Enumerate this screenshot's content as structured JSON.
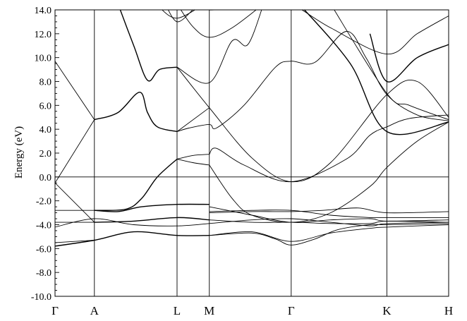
{
  "chart_data": {
    "type": "line",
    "title": "",
    "ylabel": "Energy (eV)",
    "xlabel": "",
    "ylim": [
      -10.0,
      14.0
    ],
    "y_ticks": [
      "14.0",
      "12.0",
      "10.0",
      "8.0",
      "6.0",
      "4.0",
      "2.0",
      "0.0",
      "-2.0",
      "-4.0",
      "-6.0",
      "-8.0",
      "-10.0"
    ],
    "y_tick_values": [
      14,
      12,
      10,
      8,
      6,
      4,
      2,
      0,
      -2,
      -4,
      -6,
      -8,
      -10
    ],
    "kpoints": [
      {
        "label": "Γ",
        "pos": 0.0
      },
      {
        "label": "A",
        "pos": 0.1
      },
      {
        "label": "L",
        "pos": 0.31
      },
      {
        "label": "M",
        "pos": 0.392
      },
      {
        "label": "Γ",
        "pos": 0.6
      },
      {
        "label": "K",
        "pos": 0.843
      },
      {
        "label": "H",
        "pos": 1.0
      }
    ],
    "fermi_level": 0.0,
    "grid": false,
    "series": [
      {
        "bold": false,
        "points": [
          [
            0,
            9.7
          ],
          [
            0.1,
            4.8
          ]
        ]
      },
      {
        "bold": false,
        "points": [
          [
            0,
            -0.5
          ],
          [
            0.1,
            4.8
          ]
        ]
      },
      {
        "bold": false,
        "points": [
          [
            0,
            -0.5
          ],
          [
            0.1,
            -3.8
          ]
        ]
      },
      {
        "bold": true,
        "points": [
          [
            0.1,
            4.8
          ],
          [
            0.16,
            5.4
          ],
          [
            0.215,
            7.1
          ],
          [
            0.235,
            5.4
          ],
          [
            0.26,
            4.2
          ],
          [
            0.31,
            3.8
          ]
        ]
      },
      {
        "bold": true,
        "points": [
          [
            0.16,
            14.5
          ],
          [
            0.2,
            11.0
          ],
          [
            0.235,
            8.1
          ],
          [
            0.265,
            9.0
          ],
          [
            0.31,
            9.2
          ]
        ]
      },
      {
        "bold": true,
        "points": [
          [
            0.1,
            -2.8
          ],
          [
            0.16,
            -2.9
          ],
          [
            0.22,
            -2.5
          ],
          [
            0.31,
            -2.3
          ],
          [
            0.392,
            -2.3
          ]
        ]
      },
      {
        "bold": true,
        "points": [
          [
            0.1,
            -3.8
          ],
          [
            0.2,
            -3.7
          ],
          [
            0.31,
            -3.4
          ],
          [
            0.392,
            -3.6
          ]
        ]
      },
      {
        "bold": true,
        "points": [
          [
            0,
            -5.8
          ],
          [
            0.1,
            -5.3
          ],
          [
            0.2,
            -4.6
          ],
          [
            0.31,
            -4.9
          ],
          [
            0.392,
            -4.9
          ]
        ]
      },
      {
        "bold": false,
        "points": [
          [
            0,
            -5.5
          ],
          [
            0.1,
            -5.3
          ]
        ]
      },
      {
        "bold": false,
        "points": [
          [
            0,
            -2.8
          ],
          [
            0.1,
            -2.8
          ]
        ]
      },
      {
        "bold": false,
        "points": [
          [
            0,
            -3.8
          ],
          [
            0.1,
            -3.8
          ]
        ]
      },
      {
        "bold": false,
        "points": [
          [
            0,
            -4.2
          ],
          [
            0.1,
            -3.5
          ],
          [
            0.2,
            -4.0
          ],
          [
            0.31,
            -4.1
          ],
          [
            0.392,
            -3.9
          ]
        ]
      },
      {
        "bold": true,
        "points": [
          [
            0.1,
            -2.8
          ],
          [
            0.18,
            -2.7
          ],
          [
            0.22,
            -1.8
          ],
          [
            0.26,
            0.0
          ],
          [
            0.31,
            1.5
          ]
        ]
      },
      {
        "bold": false,
        "points": [
          [
            0.31,
            1.5
          ],
          [
            0.35,
            1.2
          ],
          [
            0.392,
            1.0
          ]
        ]
      },
      {
        "bold": false,
        "points": [
          [
            0.31,
            1.5
          ],
          [
            0.35,
            1.8
          ],
          [
            0.392,
            1.9
          ]
        ]
      },
      {
        "bold": false,
        "points": [
          [
            0.31,
            3.8
          ],
          [
            0.34,
            4.1
          ],
          [
            0.392,
            4.4
          ],
          [
            0.41,
            4.1
          ],
          [
            0.48,
            6.0
          ],
          [
            0.56,
            9.2
          ],
          [
            0.6,
            9.7
          ],
          [
            0.66,
            9.6
          ],
          [
            0.74,
            12.2
          ],
          [
            0.79,
            10.0
          ],
          [
            0.843,
            6.9
          ],
          [
            0.92,
            5.2
          ],
          [
            1.0,
            4.7
          ]
        ]
      },
      {
        "bold": false,
        "points": [
          [
            0.31,
            3.8
          ],
          [
            0.392,
            5.8
          ]
        ]
      },
      {
        "bold": false,
        "points": [
          [
            0.31,
            9.2
          ],
          [
            0.392,
            5.8
          ],
          [
            0.5,
            1.6
          ],
          [
            0.6,
            -0.4
          ],
          [
            0.7,
            1.2
          ],
          [
            0.843,
            6.9
          ],
          [
            0.92,
            8.0
          ],
          [
            1.0,
            5.0
          ]
        ]
      },
      {
        "bold": false,
        "points": [
          [
            0.31,
            9.2
          ],
          [
            0.392,
            7.9
          ],
          [
            0.45,
            11.4
          ],
          [
            0.49,
            11.1
          ],
          [
            0.53,
            14.5
          ]
        ]
      },
      {
        "bold": false,
        "points": [
          [
            0.392,
            1.0
          ],
          [
            0.45,
            -1.8
          ],
          [
            0.5,
            -3.2
          ],
          [
            0.6,
            -3.8
          ],
          [
            0.7,
            -3.0
          ],
          [
            0.8,
            -0.8
          ],
          [
            0.843,
            0.8
          ],
          [
            0.92,
            3.0
          ],
          [
            1.0,
            4.6
          ]
        ]
      },
      {
        "bold": false,
        "points": [
          [
            0.392,
            1.9
          ],
          [
            0.41,
            2.4
          ],
          [
            0.48,
            1.0
          ],
          [
            0.6,
            -0.4
          ],
          [
            0.74,
            1.5
          ],
          [
            0.8,
            3.5
          ],
          [
            0.843,
            4.2
          ],
          [
            0.9,
            4.9
          ],
          [
            1.0,
            5.2
          ]
        ]
      },
      {
        "bold": false,
        "points": [
          [
            0.28,
            14.5
          ],
          [
            0.31,
            13.0
          ],
          [
            0.35,
            14.0
          ]
        ]
      },
      {
        "bold": false,
        "points": [
          [
            0.265,
            14.2
          ],
          [
            0.31,
            13.3
          ],
          [
            0.38,
            14.5
          ]
        ]
      },
      {
        "bold": false,
        "points": [
          [
            0.31,
            14.5
          ],
          [
            0.35,
            12.6
          ],
          [
            0.392,
            11.7
          ],
          [
            0.45,
            12.5
          ],
          [
            0.53,
            14.5
          ]
        ]
      },
      {
        "bold": false,
        "points": [
          [
            0.33,
            14.4
          ],
          [
            0.392,
            14.0
          ],
          [
            0.42,
            14.1
          ]
        ]
      },
      {
        "bold": false,
        "points": [
          [
            0.55,
            14.5
          ],
          [
            0.6,
            14.5
          ],
          [
            0.7,
            12.5
          ],
          [
            0.843,
            10.3
          ],
          [
            0.92,
            12.0
          ],
          [
            1.0,
            13.5
          ]
        ]
      },
      {
        "bold": true,
        "points": [
          [
            0.62,
            14.5
          ],
          [
            0.75,
            9.5
          ],
          [
            0.843,
            3.8
          ],
          [
            1.0,
            4.6
          ]
        ]
      },
      {
        "bold": true,
        "points": [
          [
            0.8,
            12.0
          ],
          [
            0.843,
            8.0
          ],
          [
            0.92,
            10.0
          ],
          [
            1.0,
            11.1
          ]
        ]
      },
      {
        "bold": false,
        "points": [
          [
            0.7,
            14.5
          ],
          [
            0.843,
            7.0
          ],
          [
            0.9,
            6.0
          ],
          [
            1.0,
            4.8
          ]
        ]
      },
      {
        "bold": false,
        "points": [
          [
            0.392,
            -2.5
          ],
          [
            0.5,
            -3.2
          ],
          [
            0.6,
            -3.8
          ],
          [
            0.7,
            -3.6
          ],
          [
            0.8,
            -3.5
          ],
          [
            0.843,
            -3.7
          ],
          [
            1.0,
            -3.6
          ]
        ]
      },
      {
        "bold": false,
        "points": [
          [
            0.392,
            -2.9
          ],
          [
            0.5,
            -2.8
          ],
          [
            0.6,
            -2.8
          ],
          [
            0.7,
            -3.2
          ],
          [
            0.8,
            -3.4
          ],
          [
            0.843,
            -3.4
          ],
          [
            1.0,
            -3.4
          ]
        ]
      },
      {
        "bold": false,
        "points": [
          [
            0.392,
            -3.0
          ],
          [
            0.5,
            -2.9
          ],
          [
            0.6,
            -2.9
          ],
          [
            0.68,
            -2.8
          ],
          [
            0.77,
            -2.6
          ],
          [
            0.843,
            -3.0
          ],
          [
            1.0,
            -2.9
          ]
        ]
      },
      {
        "bold": false,
        "points": [
          [
            0.392,
            -3.6
          ],
          [
            0.5,
            -3.8
          ],
          [
            0.6,
            -3.8
          ],
          [
            0.7,
            -3.9
          ],
          [
            0.8,
            -3.9
          ],
          [
            0.843,
            -3.7
          ],
          [
            1.0,
            -3.8
          ]
        ]
      },
      {
        "bold": false,
        "points": [
          [
            0.392,
            -3.9
          ],
          [
            0.5,
            -3.6
          ],
          [
            0.6,
            -3.5
          ],
          [
            0.7,
            -3.8
          ],
          [
            0.8,
            -4.1
          ],
          [
            0.843,
            -3.9
          ],
          [
            1.0,
            -3.8
          ]
        ]
      },
      {
        "bold": false,
        "points": [
          [
            0.392,
            -4.9
          ],
          [
            0.5,
            -4.7
          ],
          [
            0.56,
            -5.2
          ],
          [
            0.6,
            -5.7
          ],
          [
            0.66,
            -5.2
          ],
          [
            0.72,
            -4.4
          ],
          [
            0.8,
            -4.0
          ],
          [
            0.843,
            -4.0
          ],
          [
            1.0,
            -3.9
          ]
        ]
      },
      {
        "bold": false,
        "points": [
          [
            0.392,
            -4.9
          ],
          [
            0.5,
            -4.6
          ],
          [
            0.6,
            -5.4
          ],
          [
            0.7,
            -4.7
          ],
          [
            0.8,
            -4.3
          ],
          [
            0.843,
            -4.2
          ],
          [
            1.0,
            -4.0
          ]
        ]
      }
    ]
  }
}
